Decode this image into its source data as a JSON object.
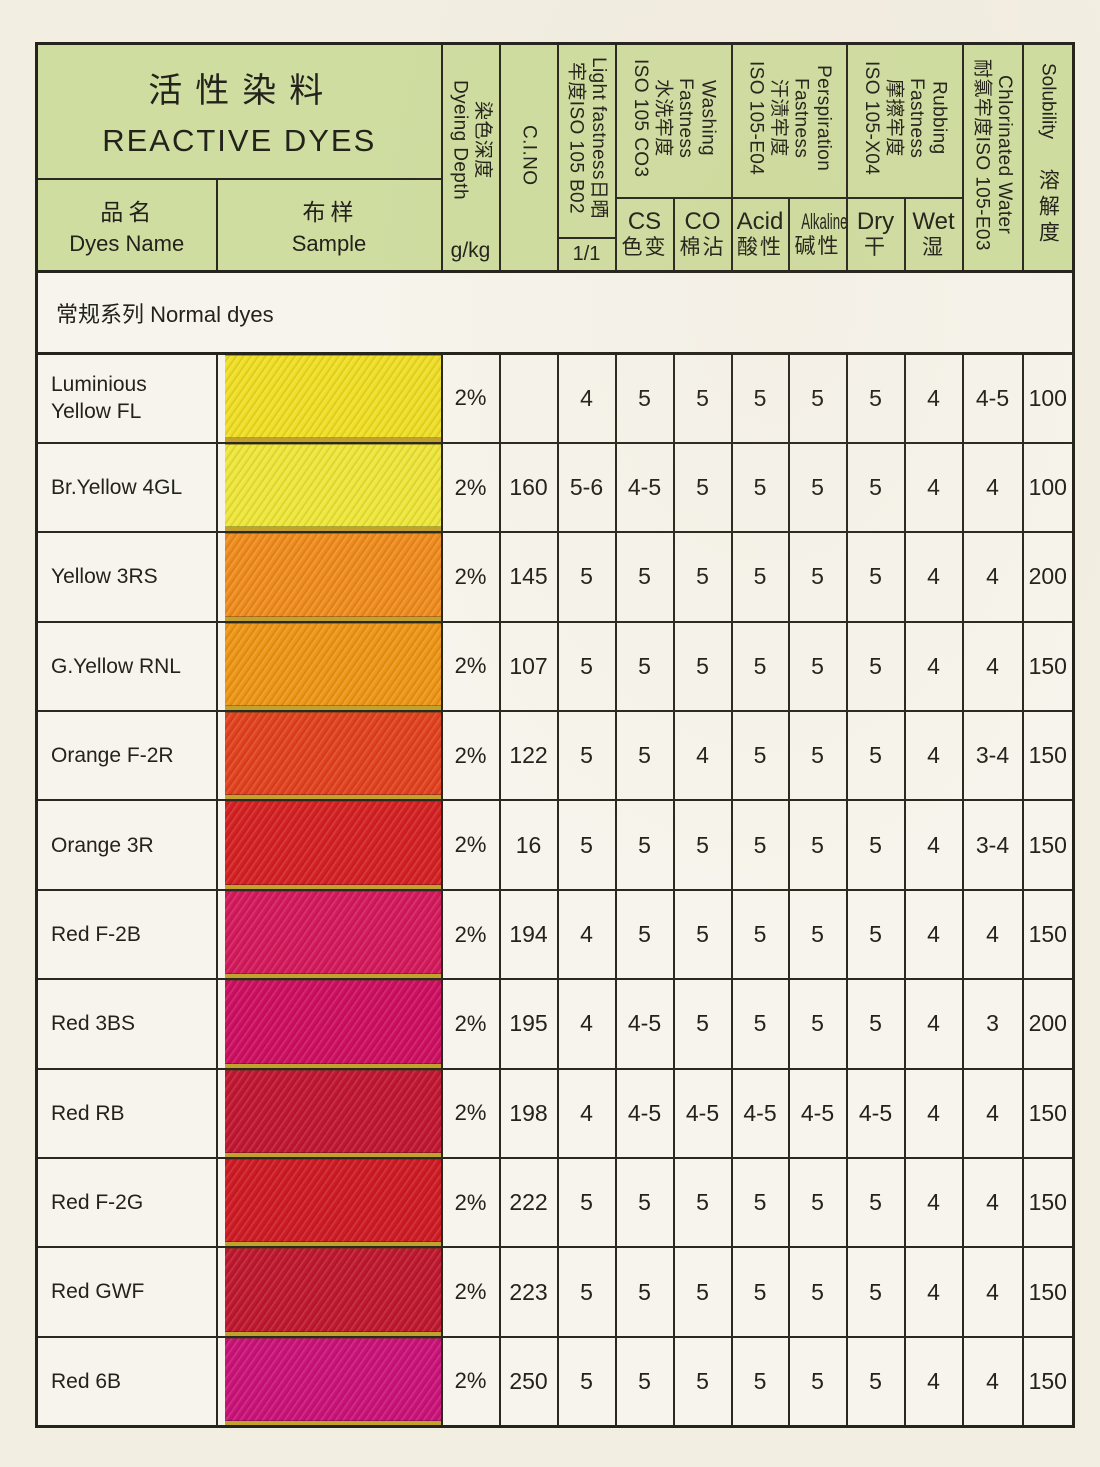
{
  "title": {
    "zh": "活性染料",
    "en": "REACTIVE DYES"
  },
  "columns": {
    "dyes_name": {
      "zh": "品名",
      "en": "Dyes Name"
    },
    "sample": {
      "zh": "布样",
      "en": "Sample"
    },
    "dyeing_depth": {
      "vertical": "染色深度\nDyeing Depth",
      "unit": "g/kg"
    },
    "ci_no": {
      "vertical": "C.I.NO"
    },
    "light_fastness": {
      "vertical": "Light fastness日晒\n牢度ISO 105 B02",
      "sub": "1/1"
    },
    "washing": {
      "vertical": "Washing\nFastness\n水洗牢度\nISO 105 CO3",
      "sub_cs": {
        "en": "CS",
        "zh": "色变"
      },
      "sub_co": {
        "en": "CO",
        "zh": "棉沾"
      }
    },
    "perspiration": {
      "vertical": "Perspiration\nFastness\n汗渍牢度\nISO 105-E04",
      "sub_acid": {
        "en": "Acid",
        "zh": "酸性"
      },
      "sub_alkaline": {
        "en": "Alkaline",
        "zh": "碱性"
      }
    },
    "rubbing": {
      "vertical": "Rubbing\nFastness\n摩擦牢度\nISO 105-X04",
      "sub_dry": {
        "en": "Dry",
        "zh": "干"
      },
      "sub_wet": {
        "en": "Wet",
        "zh": "湿"
      }
    },
    "chlorinated_water": {
      "vertical": "Chlorinated Water\n耐氯牢度ISO 105-E03"
    },
    "solubility": {
      "en": "Solubility",
      "zh": "溶解度"
    }
  },
  "section": {
    "label": "常规系列 Normal dyes"
  },
  "rows": [
    {
      "name": "Luminious\nYellow FL",
      "swatch": "#f0df25",
      "depth": "2%",
      "ci_no": "",
      "light": "4",
      "cs": "5",
      "co": "5",
      "acid": "5",
      "alkaline": "5",
      "dry": "5",
      "wet": "4",
      "chlorinated": "4-5",
      "solubility": "100"
    },
    {
      "name": "Br.Yellow 4GL",
      "swatch": "#efe73a",
      "depth": "2%",
      "ci_no": "160",
      "light": "5-6",
      "cs": "4-5",
      "co": "5",
      "acid": "5",
      "alkaline": "5",
      "dry": "5",
      "wet": "4",
      "chlorinated": "4",
      "solubility": "100"
    },
    {
      "name": "Yellow 3RS",
      "swatch": "#f08c1d",
      "depth": "2%",
      "ci_no": "145",
      "light": "5",
      "cs": "5",
      "co": "5",
      "acid": "5",
      "alkaline": "5",
      "dry": "5",
      "wet": "4",
      "chlorinated": "4",
      "solubility": "200"
    },
    {
      "name": "G.Yellow RNL",
      "swatch": "#ee9615",
      "depth": "2%",
      "ci_no": "107",
      "light": "5",
      "cs": "5",
      "co": "5",
      "acid": "5",
      "alkaline": "5",
      "dry": "5",
      "wet": "4",
      "chlorinated": "4",
      "solubility": "150"
    },
    {
      "name": "Orange F-2R",
      "swatch": "#e2421e",
      "depth": "2%",
      "ci_no": "122",
      "light": "5",
      "cs": "5",
      "co": "4",
      "acid": "5",
      "alkaline": "5",
      "dry": "5",
      "wet": "4",
      "chlorinated": "3-4",
      "solubility": "150"
    },
    {
      "name": "Orange 3R",
      "swatch": "#d52123",
      "depth": "2%",
      "ci_no": "16",
      "light": "5",
      "cs": "5",
      "co": "5",
      "acid": "5",
      "alkaline": "5",
      "dry": "5",
      "wet": "4",
      "chlorinated": "3-4",
      "solubility": "150"
    },
    {
      "name": "Red F-2B",
      "swatch": "#d41a5c",
      "depth": "2%",
      "ci_no": "194",
      "light": "4",
      "cs": "5",
      "co": "5",
      "acid": "5",
      "alkaline": "5",
      "dry": "5",
      "wet": "4",
      "chlorinated": "4",
      "solubility": "150"
    },
    {
      "name": "Red 3BS",
      "swatch": "#ce0f61",
      "depth": "2%",
      "ci_no": "195",
      "light": "4",
      "cs": "4-5",
      "co": "5",
      "acid": "5",
      "alkaline": "5",
      "dry": "5",
      "wet": "4",
      "chlorinated": "3",
      "solubility": "200"
    },
    {
      "name": "Red RB",
      "swatch": "#c21732",
      "depth": "2%",
      "ci_no": "198",
      "light": "4",
      "cs": "4-5",
      "co": "4-5",
      "acid": "4-5",
      "alkaline": "4-5",
      "dry": "4-5",
      "wet": "4",
      "chlorinated": "4",
      "solubility": "150"
    },
    {
      "name": "Red F-2G",
      "swatch": "#cf1b24",
      "depth": "2%",
      "ci_no": "222",
      "light": "5",
      "cs": "5",
      "co": "5",
      "acid": "5",
      "alkaline": "5",
      "dry": "5",
      "wet": "4",
      "chlorinated": "4",
      "solubility": "150"
    },
    {
      "name": "Red GWF",
      "swatch": "#bf182f",
      "depth": "2%",
      "ci_no": "223",
      "light": "5",
      "cs": "5",
      "co": "5",
      "acid": "5",
      "alkaline": "5",
      "dry": "5",
      "wet": "4",
      "chlorinated": "4",
      "solubility": "150"
    },
    {
      "name": "Red 6B",
      "swatch": "#cb1278",
      "depth": "2%",
      "ci_no": "250",
      "light": "5",
      "cs": "5",
      "co": "5",
      "acid": "5",
      "alkaline": "5",
      "dry": "5",
      "wet": "4",
      "chlorinated": "4",
      "solubility": "150"
    }
  ],
  "colors": {
    "page_bg": "#f2eee2",
    "header_bg": "#cfdda1",
    "cell_bg": "#f6f4ec",
    "border": "#24231c",
    "selvage_gold": "#c2a22d"
  }
}
